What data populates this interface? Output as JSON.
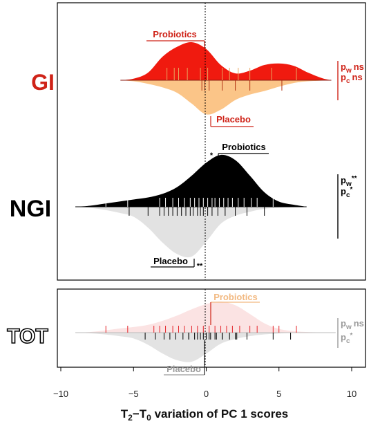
{
  "colors": {
    "gi_probiotics": "#f01a0f",
    "gi_placebo": "#fbc588",
    "gi_label": "#cf2318",
    "gi_placebo_label": "#cf2318",
    "ngi_probiotics": "#000000",
    "ngi_placebo": "#e2e2e2",
    "tot_probiotics": "#fbe3e3",
    "tot_placebo": "#e3e3e3",
    "tot_probiotics_label": "#f2b981",
    "tot_placebo_label": "#9a9a9a",
    "tot_pvalue": "#9a9a9a"
  },
  "chart_data": {
    "type": "violin",
    "xlabel_parts": {
      "t2": "T",
      "sub2": "2",
      "dash": "−",
      "t0": "T",
      "sub0": "0",
      "rest": " variation of PC 1 scores"
    },
    "xlim": [
      -10,
      11.5
    ],
    "xticks": [
      -10,
      -5,
      0,
      5,
      10
    ],
    "xtick_labels": [
      "−10",
      "−5",
      "0",
      "5",
      "10"
    ],
    "reference_line_x": 0,
    "groups": [
      {
        "id": "gi",
        "label": "GI",
        "top": {
          "name": "Probiotics",
          "density": [
            [
              -5.9,
              0
            ],
            [
              -5,
              0.04
            ],
            [
              -4,
              0.2
            ],
            [
              -3,
              0.62
            ],
            [
              -2,
              0.88
            ],
            [
              -1,
              1.0
            ],
            [
              0,
              0.82
            ],
            [
              1,
              0.4
            ],
            [
              2,
              0.18
            ],
            [
              3,
              0.25
            ],
            [
              4,
              0.4
            ],
            [
              5,
              0.44
            ],
            [
              6,
              0.38
            ],
            [
              7,
              0.2
            ],
            [
              8,
              0.05
            ],
            [
              8.6,
              0
            ]
          ],
          "points": [
            -2.7,
            -2.2,
            -1.9,
            -1.3,
            -0.4,
            0.1,
            1.1,
            1.6,
            2.2,
            3.0,
            4.5,
            6.2
          ]
        },
        "bottom": {
          "name": "Placebo",
          "density": [
            [
              -5.9,
              0
            ],
            [
              -5,
              0.03
            ],
            [
              -4,
              0.1
            ],
            [
              -3,
              0.2
            ],
            [
              -2,
              0.35
            ],
            [
              -1,
              0.65
            ],
            [
              0,
              0.95
            ],
            [
              1,
              0.82
            ],
            [
              2,
              0.55
            ],
            [
              3,
              0.4
            ],
            [
              4,
              0.3
            ],
            [
              5,
              0.18
            ],
            [
              6,
              0.08
            ],
            [
              7,
              0.03
            ],
            [
              8.6,
              0
            ]
          ],
          "points": [
            -0.3,
            -0.1,
            0.2,
            1.1,
            2.0,
            3.0,
            5.2
          ]
        },
        "pvalues": [
          {
            "p": "p",
            "sub": "w",
            "sig": "ns"
          },
          {
            "p": "p",
            "sub": "c",
            "sig": "ns"
          }
        ]
      },
      {
        "id": "ngi",
        "label": "NGI",
        "top": {
          "name": "Probiotics",
          "sig_mark": "*",
          "density": [
            [
              -9,
              0
            ],
            [
              -8,
              0.02
            ],
            [
              -7,
              0.06
            ],
            [
              -6,
              0.1
            ],
            [
              -5,
              0.14
            ],
            [
              -4,
              0.18
            ],
            [
              -3,
              0.25
            ],
            [
              -2,
              0.38
            ],
            [
              -1,
              0.6
            ],
            [
              0,
              0.85
            ],
            [
              1,
              1.0
            ],
            [
              2,
              0.9
            ],
            [
              3,
              0.6
            ],
            [
              4,
              0.28
            ],
            [
              5,
              0.1
            ],
            [
              6,
              0.04
            ],
            [
              6.9,
              0
            ]
          ],
          "points": [
            -6.9,
            -5.4,
            -3.2,
            -2.8,
            -2.3,
            -1.9,
            -1.5,
            -1.1,
            -0.8,
            -0.5,
            -0.2,
            0.1,
            0.4,
            0.6,
            0.9,
            1.2,
            1.5,
            1.8,
            2.2,
            2.6,
            3.1,
            3.5,
            4.6
          ]
        },
        "bottom": {
          "name": "Placebo",
          "sig_mark": "**",
          "density": [
            [
              -9,
              0
            ],
            [
              -8,
              0.02
            ],
            [
              -7,
              0.06
            ],
            [
              -6,
              0.12
            ],
            [
              -5,
              0.2
            ],
            [
              -4,
              0.42
            ],
            [
              -3,
              0.72
            ],
            [
              -2,
              0.95
            ],
            [
              -1,
              1.0
            ],
            [
              0,
              0.7
            ],
            [
              1,
              0.34
            ],
            [
              2,
              0.18
            ],
            [
              3,
              0.1
            ],
            [
              4,
              0.04
            ],
            [
              5,
              0.02
            ],
            [
              6.9,
              0
            ]
          ],
          "points": [
            -5.3,
            -4.0,
            -3.2,
            -2.9,
            -2.6,
            -2.3,
            -2.0,
            -1.7,
            -1.4,
            -1.1,
            -0.9,
            -0.6,
            -0.4,
            -0.2,
            0.1,
            0.4,
            0.8,
            1.3,
            2.0,
            2.8,
            4.0
          ]
        },
        "pvalues": [
          {
            "p": "p",
            "sub": "w",
            "sig": "**"
          },
          {
            "p": "p",
            "sub": "c",
            "sig": "*"
          }
        ]
      },
      {
        "id": "tot",
        "label": "TOT",
        "top": {
          "name": "Probiotics",
          "density": [
            [
              -9,
              0
            ],
            [
              -8,
              0.02
            ],
            [
              -7,
              0.07
            ],
            [
              -6,
              0.13
            ],
            [
              -5,
              0.18
            ],
            [
              -4,
              0.25
            ],
            [
              -3,
              0.38
            ],
            [
              -2,
              0.55
            ],
            [
              -1,
              0.75
            ],
            [
              0,
              0.92
            ],
            [
              1,
              1.0
            ],
            [
              2,
              0.88
            ],
            [
              3,
              0.6
            ],
            [
              4,
              0.3
            ],
            [
              5,
              0.12
            ],
            [
              6,
              0.05
            ],
            [
              7,
              0.02
            ],
            [
              8.9,
              0
            ]
          ],
          "points_red": [
            -6.9,
            -5.4,
            -3.6,
            -3.2,
            -2.8,
            -2.3,
            -1.9,
            -1.5,
            -1.0,
            -0.6,
            -0.2,
            0.2,
            0.6,
            1.0,
            1.4,
            1.8,
            2.3,
            3.0,
            3.5,
            4.6,
            5.0,
            6.2
          ],
          "points_black": [
            -4.2,
            -3.5,
            -2.9,
            -2.5,
            -2.1,
            -1.6,
            -1.2,
            -0.8,
            -0.4,
            0.0,
            0.3,
            0.7,
            1.1,
            1.6,
            2.1,
            2.8,
            4.6,
            5.8
          ]
        },
        "bottom": {
          "name": "Placebo",
          "density": [
            [
              -9,
              0
            ],
            [
              -8,
              0.02
            ],
            [
              -7,
              0.06
            ],
            [
              -6,
              0.12
            ],
            [
              -5,
              0.2
            ],
            [
              -4,
              0.42
            ],
            [
              -3,
              0.72
            ],
            [
              -2,
              0.95
            ],
            [
              -1,
              1.0
            ],
            [
              0,
              0.72
            ],
            [
              1,
              0.38
            ],
            [
              2,
              0.22
            ],
            [
              3,
              0.12
            ],
            [
              4,
              0.06
            ],
            [
              5,
              0.03
            ],
            [
              6,
              0.01
            ],
            [
              8.9,
              0
            ]
          ],
          "points": [
            -1.2,
            -0.6,
            -0.2,
            0.2,
            0.6,
            1.1,
            2.0
          ]
        },
        "pvalues": [
          {
            "p": "p",
            "sub": "w",
            "sig": "ns"
          },
          {
            "p": "p",
            "sub": "c",
            "sig": "*"
          }
        ]
      }
    ]
  }
}
